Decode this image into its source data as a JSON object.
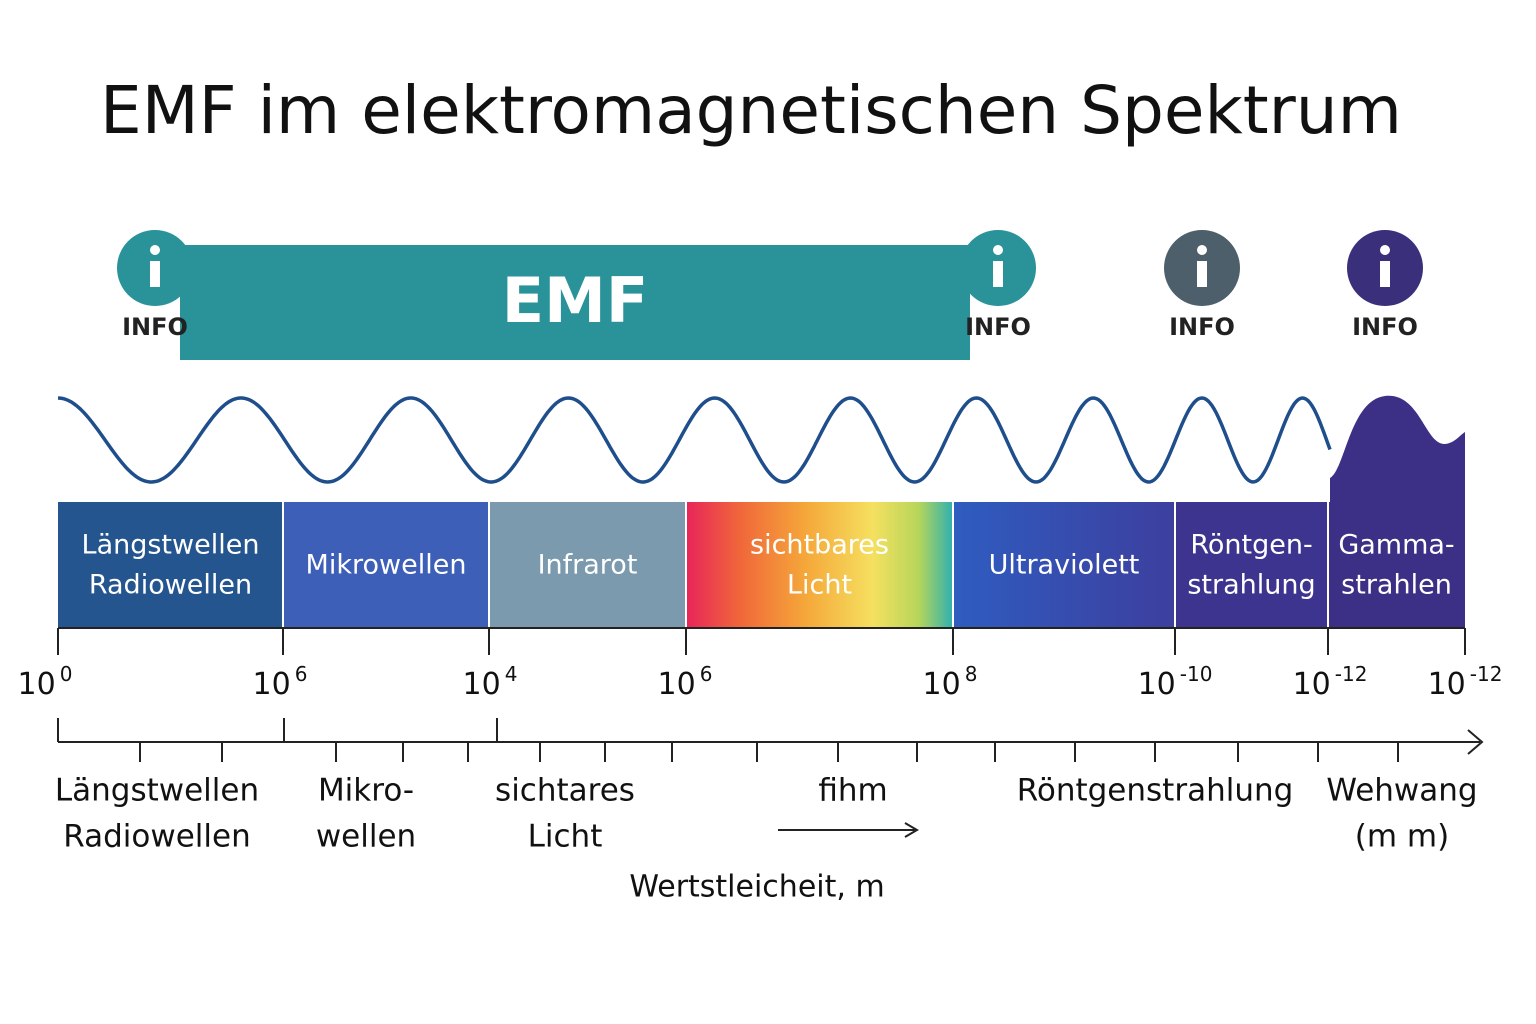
{
  "title": "EMF im elektromagnetischen Spektrum",
  "emf_banner": {
    "label": "EMF"
  },
  "info_icons": [
    {
      "label": "INFO"
    },
    {
      "label": "INFO"
    },
    {
      "label": "INFO"
    },
    {
      "label": "INFO"
    }
  ],
  "bands": [
    {
      "lines": [
        "Längstwellen",
        "Radiowellen"
      ]
    },
    {
      "lines": [
        "Mikrowellen"
      ]
    },
    {
      "lines": [
        "Infrarot"
      ]
    },
    {
      "lines": [
        "sichtbares",
        "Licht"
      ]
    },
    {
      "lines": [
        "Ultraviolett"
      ]
    },
    {
      "lines": [
        "Röntgen-",
        "strahlung"
      ]
    },
    {
      "lines": [
        "Gamma-",
        "strahlen"
      ]
    }
  ],
  "scale_labels": [
    {
      "base": "10",
      "exp": "0"
    },
    {
      "base": "10",
      "exp": "6"
    },
    {
      "base": "10",
      "exp": "4"
    },
    {
      "base": "10",
      "exp": "6"
    },
    {
      "base": "10",
      "exp": "8"
    },
    {
      "base": "10",
      "exp": "-10"
    },
    {
      "base": "10",
      "exp": "-12"
    },
    {
      "base": "10",
      "exp": "-12"
    }
  ],
  "lower_labels": [
    {
      "lines": [
        "Längstwellen",
        "Radiowellen"
      ]
    },
    {
      "lines": [
        "Mikro-",
        "wellen"
      ]
    },
    {
      "lines": [
        "sichtares",
        "Licht"
      ]
    },
    {
      "lines": [
        "fihm"
      ]
    },
    {
      "lines": [
        "Röntgenstrahlung"
      ]
    },
    {
      "lines": [
        "Wehwang",
        "(m m)"
      ]
    }
  ],
  "axis_label": "Wertstleicheit, m"
}
